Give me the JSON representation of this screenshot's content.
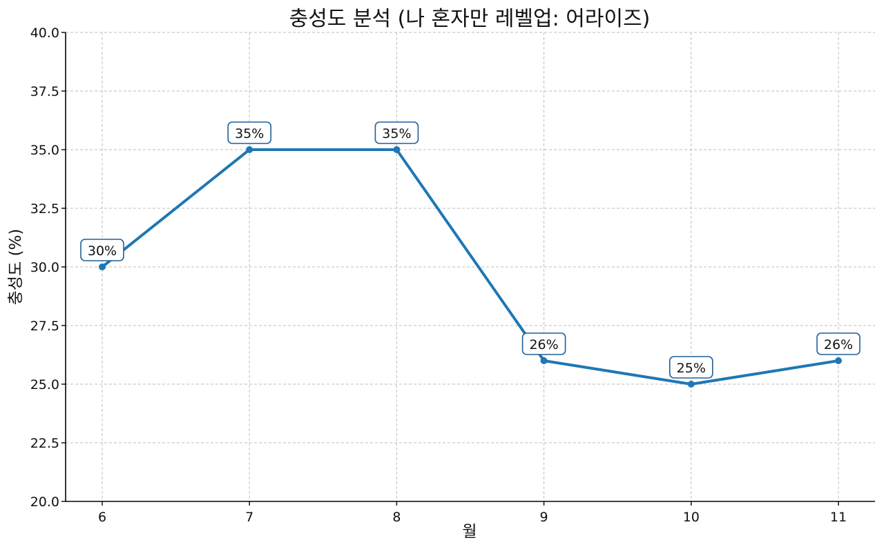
{
  "chart_data": {
    "type": "line",
    "title": "충성도 분석 (나 혼자만 레벨업: 어라이즈)",
    "xlabel": "월",
    "ylabel": "충성도 (%)",
    "x": [
      6,
      7,
      8,
      9,
      10,
      11
    ],
    "x_tick_labels": [
      "6",
      "7",
      "8",
      "9",
      "10",
      "11"
    ],
    "series": [
      {
        "values": [
          30,
          35,
          35,
          26,
          25,
          26
        ],
        "data_labels": [
          "30%",
          "35%",
          "35%",
          "26%",
          "25%",
          "26%"
        ],
        "color": "#1f77b4"
      }
    ],
    "ylim": [
      20,
      40
    ],
    "y_ticks": [
      20.0,
      22.5,
      25.0,
      27.5,
      30.0,
      32.5,
      35.0,
      37.5,
      40.0
    ],
    "y_tick_labels": [
      "20.0",
      "22.5",
      "25.0",
      "27.5",
      "30.0",
      "32.5",
      "35.0",
      "37.5",
      "40.0"
    ],
    "grid": true,
    "label_border_color": "#1f5f99"
  }
}
